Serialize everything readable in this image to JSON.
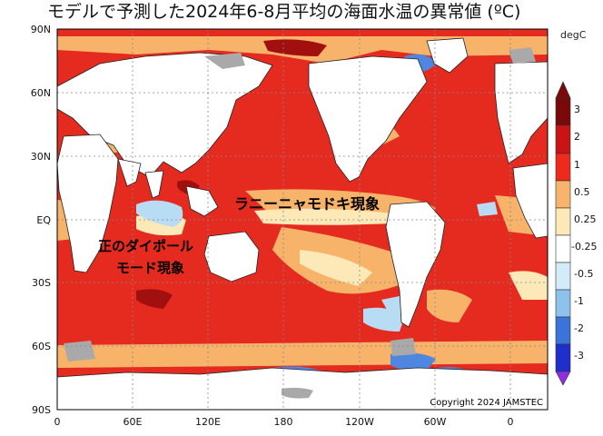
{
  "title": "モデルで予測した2024年6-8月平均の海面水温の異常値 (ºC)",
  "units": "degC",
  "copyright": "Copyright 2024 JAMSTEC",
  "annotations": {
    "lanina": "ラニーニャモドキ現象",
    "iod_line1": "正のダイポール",
    "iod_line2": "モード現象"
  },
  "axes": {
    "lat_ticks": [
      "90N",
      "60N",
      "30N",
      "EQ",
      "30S",
      "60S",
      "90S"
    ],
    "lon_ticks": [
      "0",
      "60E",
      "120E",
      "180",
      "120W",
      "60W",
      "0"
    ]
  },
  "colorbar": {
    "labels": [
      "3",
      "2",
      "1",
      "0.5",
      "0.25",
      "-0.25",
      "-0.5",
      "-1",
      "-2",
      "-3"
    ],
    "colors": [
      "#7a0a0a",
      "#c81414",
      "#ee2a1e",
      "#f8b46c",
      "#fde9b8",
      "#ffffff",
      "#d4ecfa",
      "#8ec1ec",
      "#3b74d8",
      "#1e2fcc",
      "#8e2ee0"
    ]
  },
  "palette": {
    "strong_warm": "#e52a1f",
    "warm": "#f7b36a",
    "slight_warm": "#fde9b8",
    "cool": "#b9dcf5",
    "cold": "#4e86e0",
    "very_warm": "#a10f0f",
    "land": "#ffffff",
    "ice": "#a9a9a9"
  }
}
